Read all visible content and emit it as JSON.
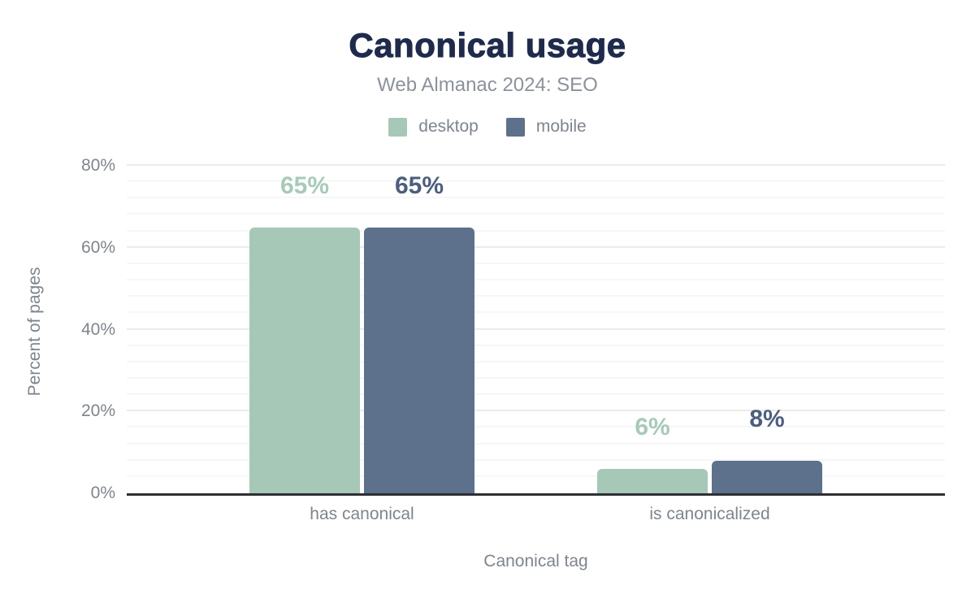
{
  "chart_data": {
    "type": "bar",
    "title": "Canonical usage",
    "subtitle": "Web Almanac 2024: SEO",
    "categories": [
      "has canonical",
      "is canonicalized"
    ],
    "series": [
      {
        "name": "desktop",
        "color": "#a6c8b6",
        "label_color": "#a7cab8",
        "values": [
          65,
          6
        ],
        "labels": [
          "65%",
          "6%"
        ]
      },
      {
        "name": "mobile",
        "color": "#5d708c",
        "label_color": "#4b5e7e",
        "values": [
          65,
          8
        ],
        "labels": [
          "65%",
          "8%"
        ]
      }
    ],
    "xlabel": "Canonical tag",
    "ylabel": "Percent of pages",
    "ylim": [
      0,
      80
    ],
    "yticks": [
      0,
      20,
      40,
      60,
      80
    ],
    "ytick_labels": [
      "0%",
      "20%",
      "40%",
      "60%",
      "80%"
    ],
    "grid": {
      "minor_step": 4,
      "major_step": 20,
      "on": true
    },
    "legend_position": "top"
  }
}
